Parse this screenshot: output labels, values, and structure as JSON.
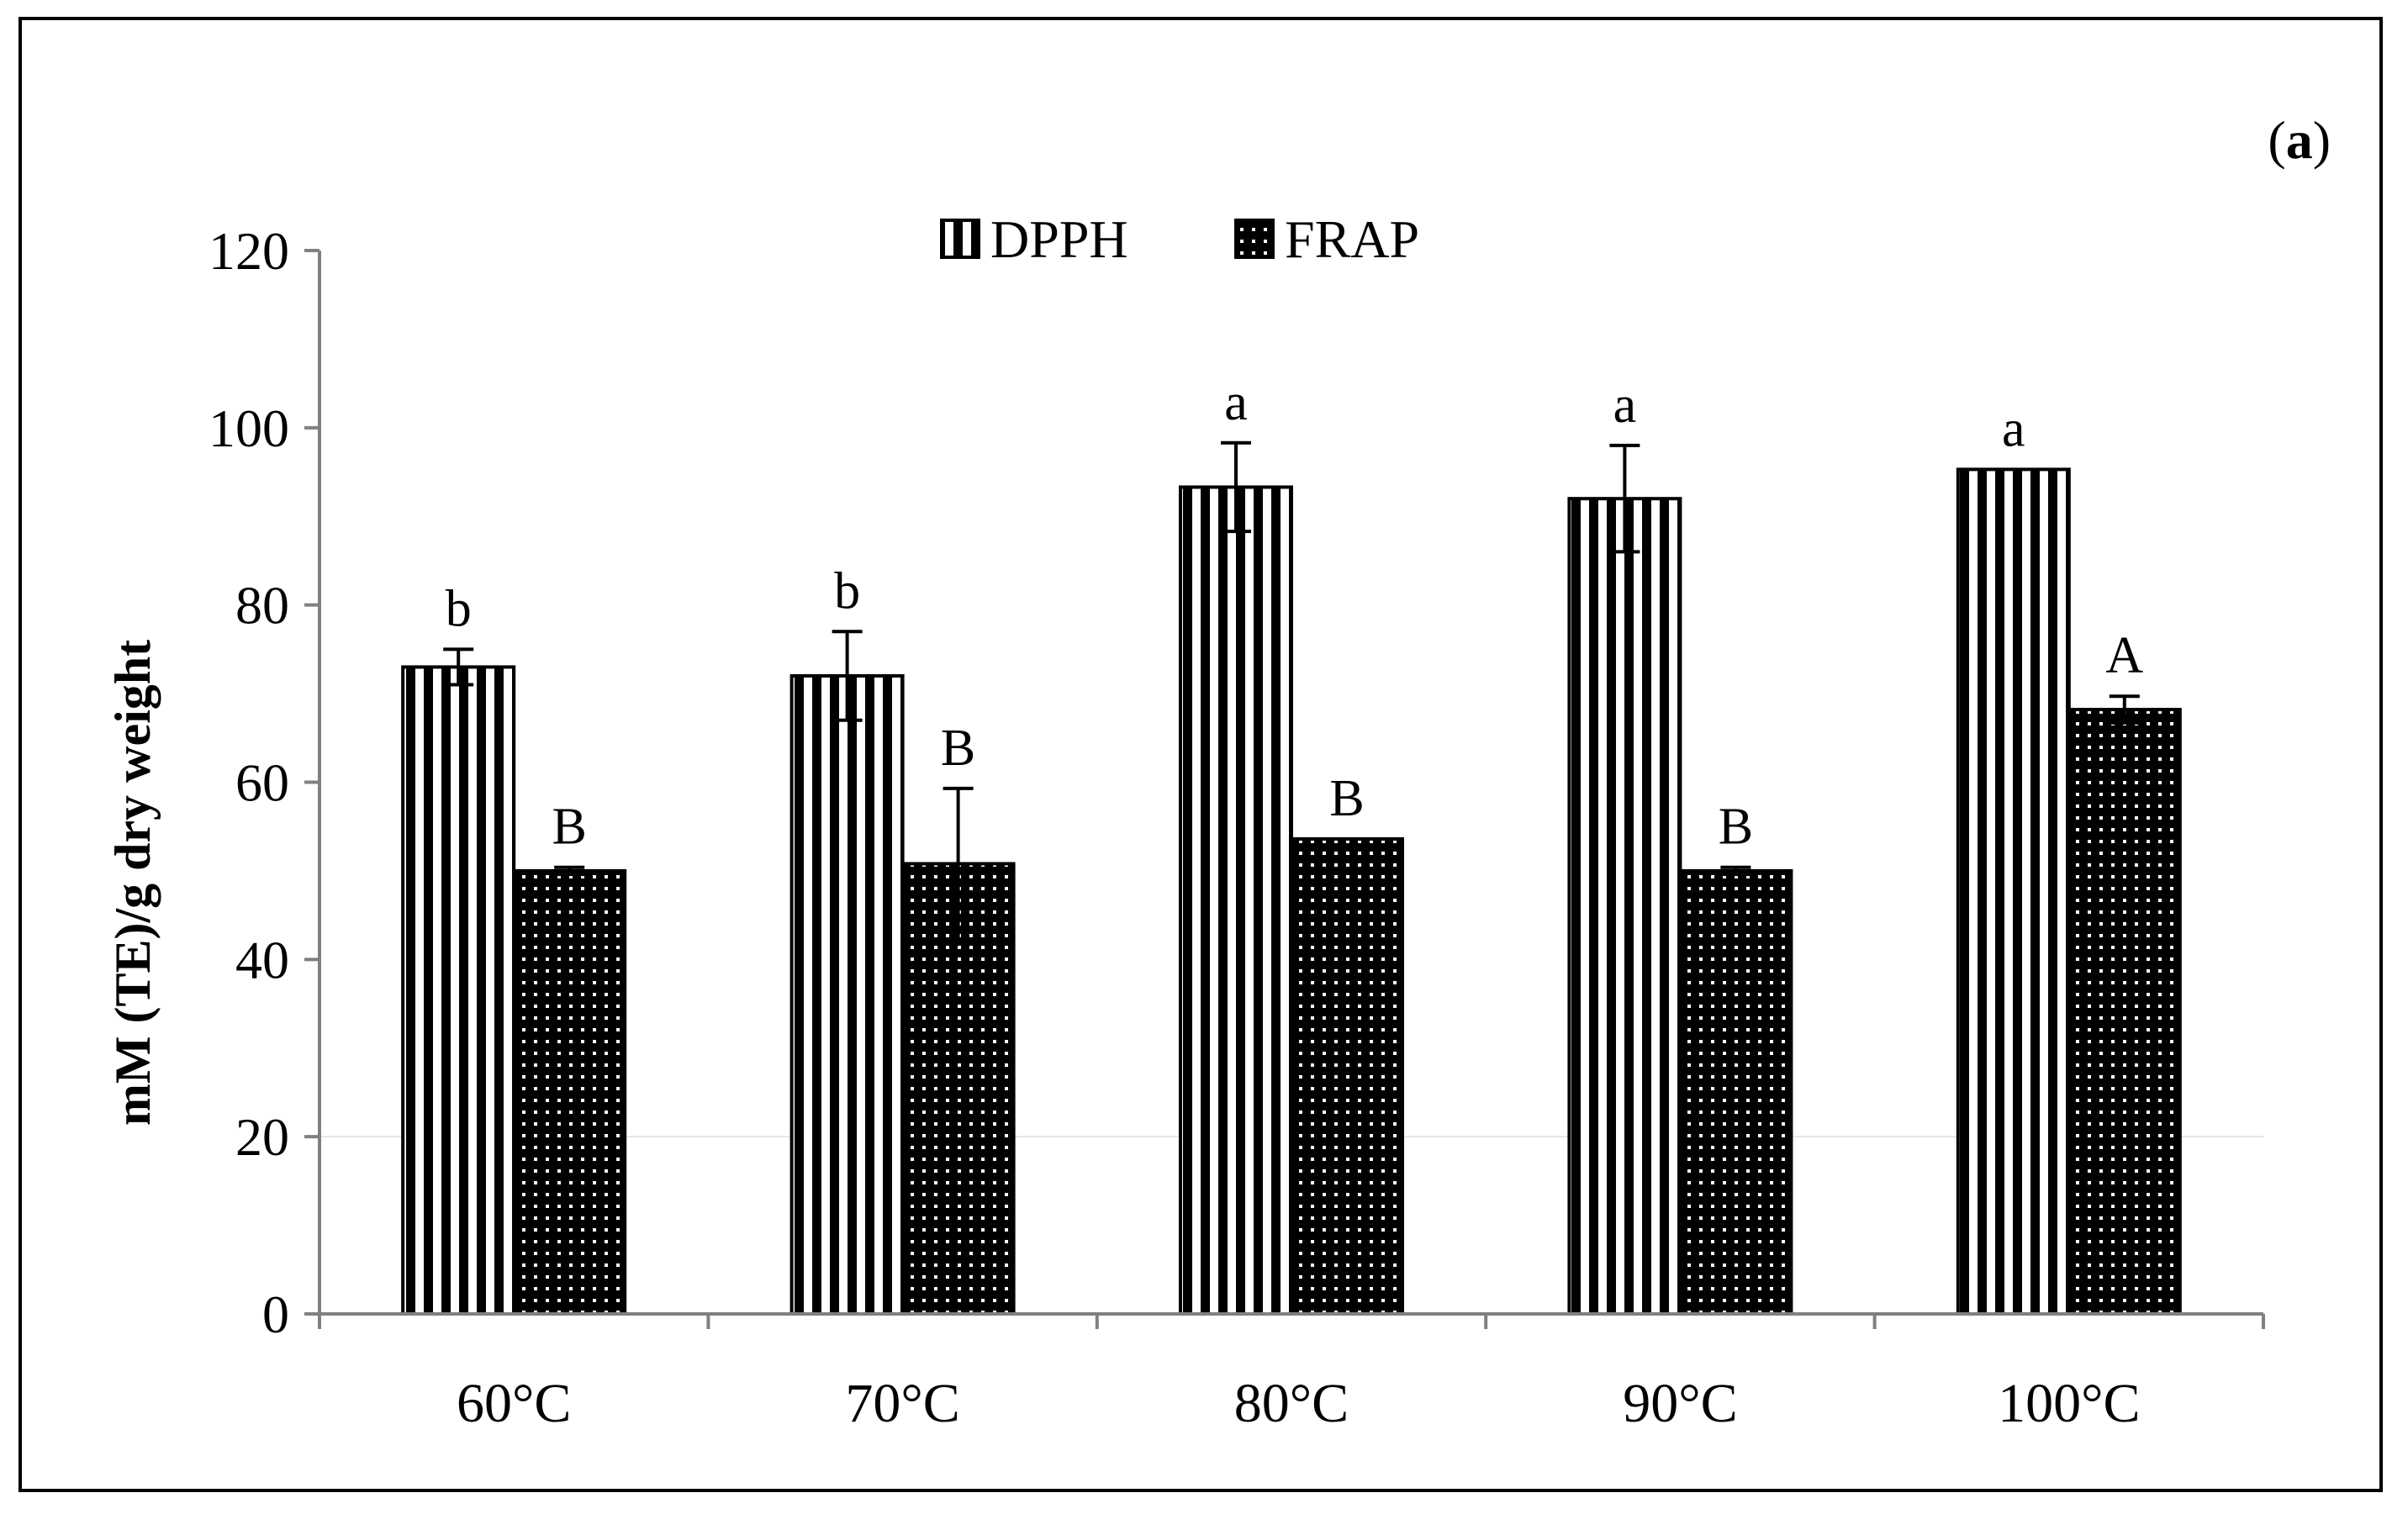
{
  "chart_data": {
    "type": "bar",
    "panel_label": "(a)",
    "panel_label_parts": [
      "(",
      "a",
      ")"
    ],
    "ylabel": "mM (TE)/g dry weight",
    "xlabel": "",
    "ylim": [
      0,
      120
    ],
    "yticks": [
      0,
      20,
      40,
      60,
      80,
      100,
      120
    ],
    "categories": [
      "60°C",
      "70°C",
      "80°C",
      "90°C",
      "100°C"
    ],
    "legend_position": "top-center",
    "series": [
      {
        "name": "DPPH",
        "pattern": "vertical-stripes",
        "values": [
          73,
          72,
          93.3,
          92,
          95.3
        ],
        "errors": [
          2,
          5,
          5,
          6,
          0
        ],
        "letters": [
          "b",
          "b",
          "a",
          "a",
          "a"
        ]
      },
      {
        "name": "FRAP",
        "pattern": "dots",
        "values": [
          50,
          50.8,
          53.6,
          50,
          68.2
        ],
        "errors": [
          0.4,
          8.5,
          0,
          0.4,
          1.5
        ],
        "letters": [
          "B",
          "B",
          "B",
          "B",
          "A"
        ]
      }
    ],
    "colors": {
      "axis": "#808080",
      "ink": "#000000",
      "background": "#ffffff"
    }
  }
}
